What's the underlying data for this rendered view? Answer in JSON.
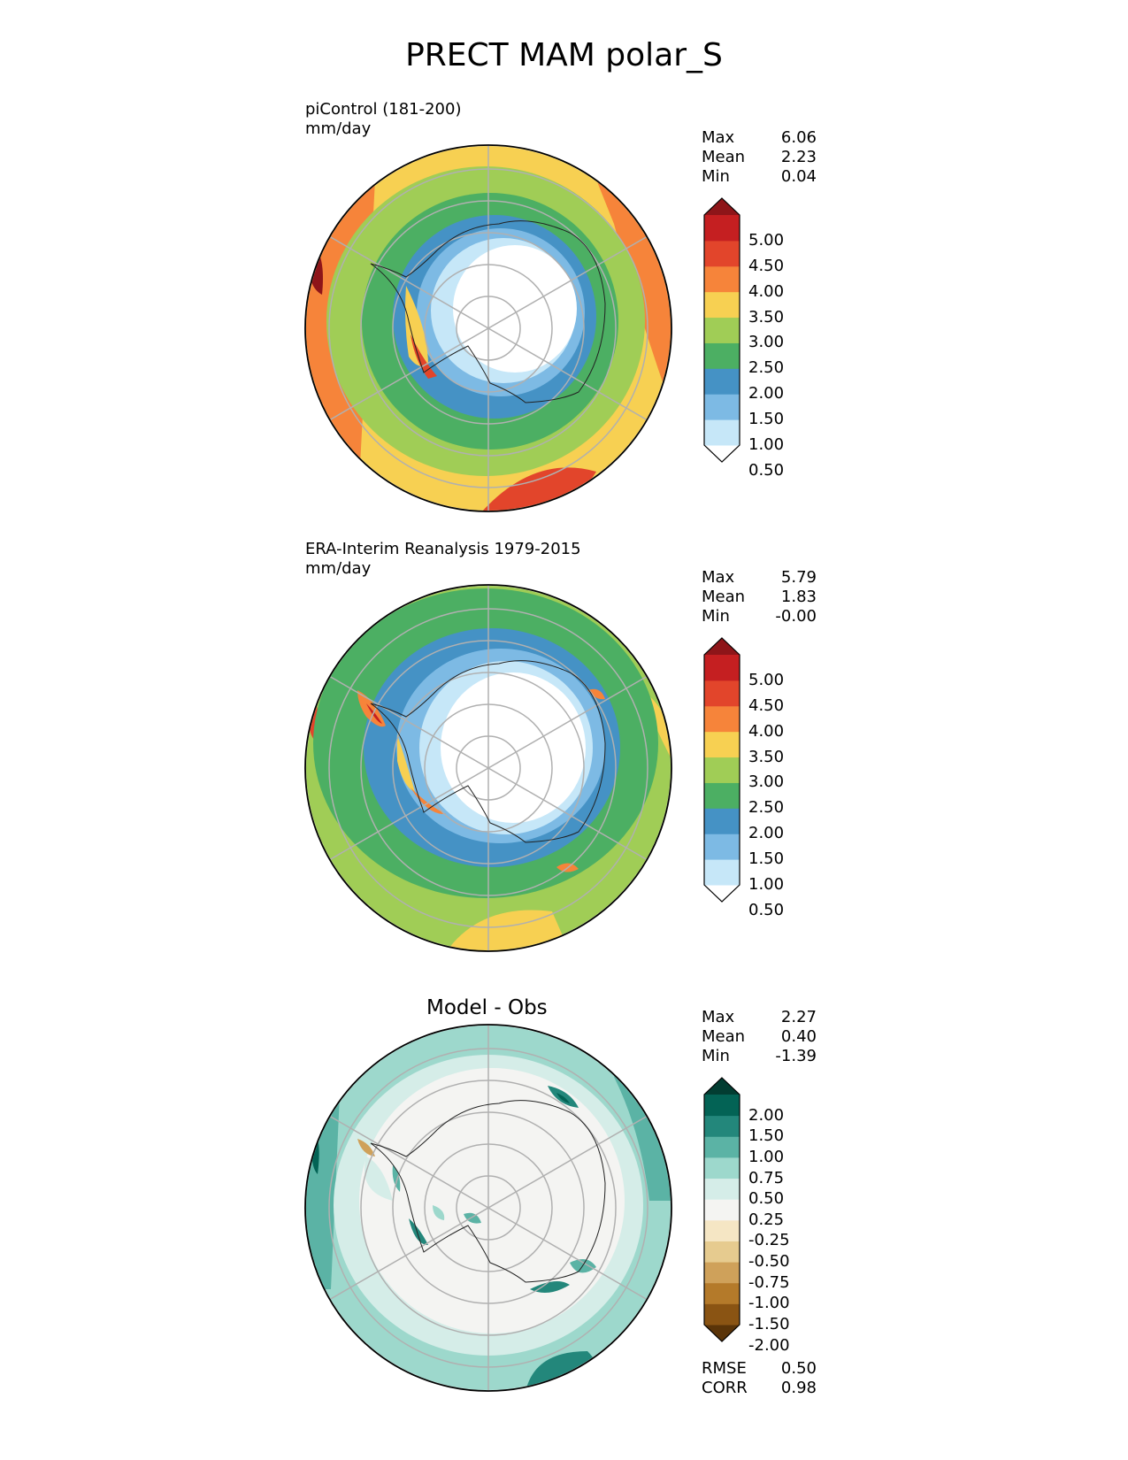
{
  "figure": {
    "title": "PRECT MAM polar_S"
  },
  "panels": [
    {
      "id": "test",
      "label_line1": "piControl (181-200)",
      "label_line2": "mm/day",
      "stats": [
        {
          "label": "Max",
          "value": "6.06"
        },
        {
          "label": "Mean",
          "value": "2.23"
        },
        {
          "label": "Min",
          "value": "0.04"
        }
      ],
      "colorbar": {
        "ticks": [
          "5.00",
          "4.50",
          "4.00",
          "3.50",
          "3.00",
          "2.50",
          "2.00",
          "1.50",
          "1.00",
          "0.50"
        ],
        "colors": [
          "#ffffff",
          "#c6e7f8",
          "#7dbae4",
          "#4592c5",
          "#4caf63",
          "#a0cd56",
          "#f7d052",
          "#f6843a",
          "#e2452b",
          "#c51f21",
          "#8e1519"
        ]
      }
    },
    {
      "id": "reference",
      "label_line1": "ERA-Interim Reanalysis 1979-2015",
      "label_line2": "mm/day",
      "stats": [
        {
          "label": "Max",
          "value": "5.79"
        },
        {
          "label": "Mean",
          "value": "1.83"
        },
        {
          "label": "Min",
          "value": "-0.00"
        }
      ],
      "colorbar": {
        "ticks": [
          "5.00",
          "4.50",
          "4.00",
          "3.50",
          "3.00",
          "2.50",
          "2.00",
          "1.50",
          "1.00",
          "0.50"
        ],
        "colors": [
          "#ffffff",
          "#c6e7f8",
          "#7dbae4",
          "#4592c5",
          "#4caf63",
          "#a0cd56",
          "#f7d052",
          "#f6843a",
          "#e2452b",
          "#c51f21",
          "#8e1519"
        ]
      }
    },
    {
      "id": "difference",
      "title": "Model - Obs",
      "stats": [
        {
          "label": "Max",
          "value": "2.27"
        },
        {
          "label": "Mean",
          "value": "0.40"
        },
        {
          "label": "Min",
          "value": "-1.39"
        }
      ],
      "metrics": [
        {
          "label": "RMSE",
          "value": "0.50"
        },
        {
          "label": "CORR",
          "value": "0.98"
        }
      ],
      "colorbar": {
        "ticks": [
          "2.00",
          "1.50",
          "1.00",
          "0.75",
          "0.50",
          "0.25",
          "-0.25",
          "-0.50",
          "-0.75",
          "-1.00",
          "-1.50",
          "-2.00"
        ],
        "colors": [
          "#5a3408",
          "#8a5413",
          "#b47a2a",
          "#cfa15a",
          "#e6cb8f",
          "#f5e6c4",
          "#f4f4f2",
          "#d5ede8",
          "#9dd8cc",
          "#5bb3a5",
          "#23877b",
          "#036355",
          "#023d32"
        ]
      }
    }
  ]
}
